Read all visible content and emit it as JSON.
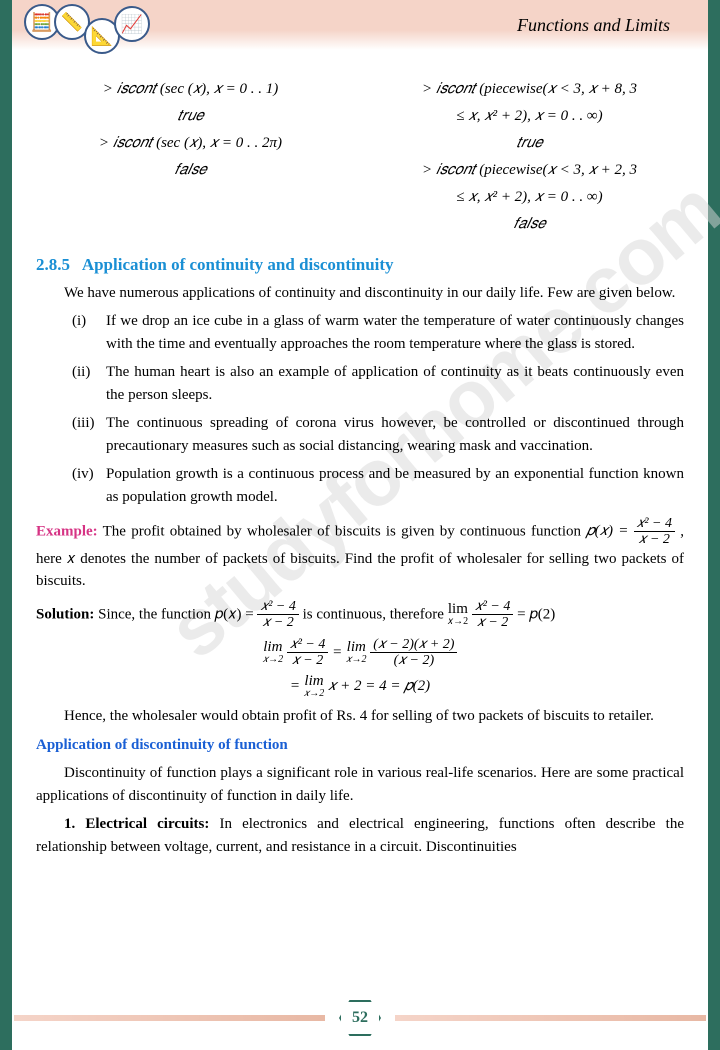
{
  "header": {
    "chapter_title": "Functions and Limits",
    "icons": [
      "calc",
      "ruler",
      "compass",
      "graph"
    ]
  },
  "code": {
    "left": [
      "> 𝑖𝑠𝑐𝑜𝑛𝑡 (sec (𝑥), 𝑥 = 0 . . 1)",
      "𝑡𝑟𝑢𝑒",
      "> 𝑖𝑠𝑐𝑜𝑛𝑡 (sec (𝑥), 𝑥 = 0 . . 2π)",
      "𝑓𝑎𝑙𝑠𝑒"
    ],
    "right": [
      "> 𝑖𝑠𝑐𝑜𝑛𝑡 (piecewise(𝑥 < 3, 𝑥 + 8, 3",
      "≤ 𝑥, 𝑥² + 2), 𝑥 = 0 . . ∞)",
      "𝑡𝑟𝑢𝑒",
      "> 𝑖𝑠𝑐𝑜𝑛𝑡 (piecewise(𝑥 < 3, 𝑥 + 2, 3",
      "≤ 𝑥, 𝑥² + 2), 𝑥 = 0 . . ∞)",
      "𝑓𝑎𝑙𝑠𝑒"
    ]
  },
  "section": {
    "number": "2.8.5",
    "title": "Application of continuity and discontinuity"
  },
  "intro": "We have numerous applications of continuity and discontinuity in our daily life. Few are given below.",
  "items": [
    {
      "marker": "(i)",
      "text": "If we drop an ice cube in a glass of warm water the temperature of water continuously changes with the time and eventually approaches the room temperature where the glass is stored."
    },
    {
      "marker": "(ii)",
      "text": "The human heart is also an example of application of continuity as it beats continuously even the person sleeps."
    },
    {
      "marker": "(iii)",
      "text": "The continuous spreading of corona virus however, be controlled or discontinued through precautionary measures such as social distancing, wearing mask and vaccination."
    },
    {
      "marker": "(iv)",
      "text": "Population growth is a continuous process and be measured by an exponential function known as population growth model."
    }
  ],
  "example": {
    "label": "Example:",
    "text_before": " The profit obtained by wholesaler of biscuits is given by continuous function ",
    "text_after": " , here 𝑥 denotes the number of packets of biscuits. Find the profit of wholesaler for selling two packets of biscuits.",
    "frac_num": "𝑥² − 4",
    "frac_den": "𝑥 − 2",
    "px": "𝑝(𝑥) = "
  },
  "solution": {
    "label": "Solution:",
    "text1": " Since, the function 𝑝(𝑥) = ",
    "text2": " is continuous, therefore ",
    "text3": " = 𝑝(2)",
    "eq1_lim": "lim",
    "eq1_sub": "𝑥→2",
    "eq1_frac_num": "𝑥² − 4",
    "eq1_frac_den": "𝑥 − 2",
    "eq1_mid": " = ",
    "eq1_frac2_num": "(𝑥 − 2)(𝑥 + 2)",
    "eq1_frac2_den": "(𝑥 − 2)",
    "eq2": "= ",
    "eq2_end": " 𝑥 + 2 = 4 = 𝑝(2)",
    "conclusion": "Hence, the wholesaler would obtain profit of Rs. 4 for selling of two packets of biscuits to retailer."
  },
  "discontinuity": {
    "heading": "Application of discontinuity of function",
    "para1": "Discontinuity of function plays a significant role in various real-life scenarios. Here are some practical applications of discontinuity of function in daily life.",
    "item1_label": "1. Electrical circuits:",
    "item1_text": " In electronics and electrical engineering, functions often describe the relationship between voltage, current, and resistance in a circuit. Discontinuities"
  },
  "watermark": "studyforhome.com",
  "page_number": "52"
}
